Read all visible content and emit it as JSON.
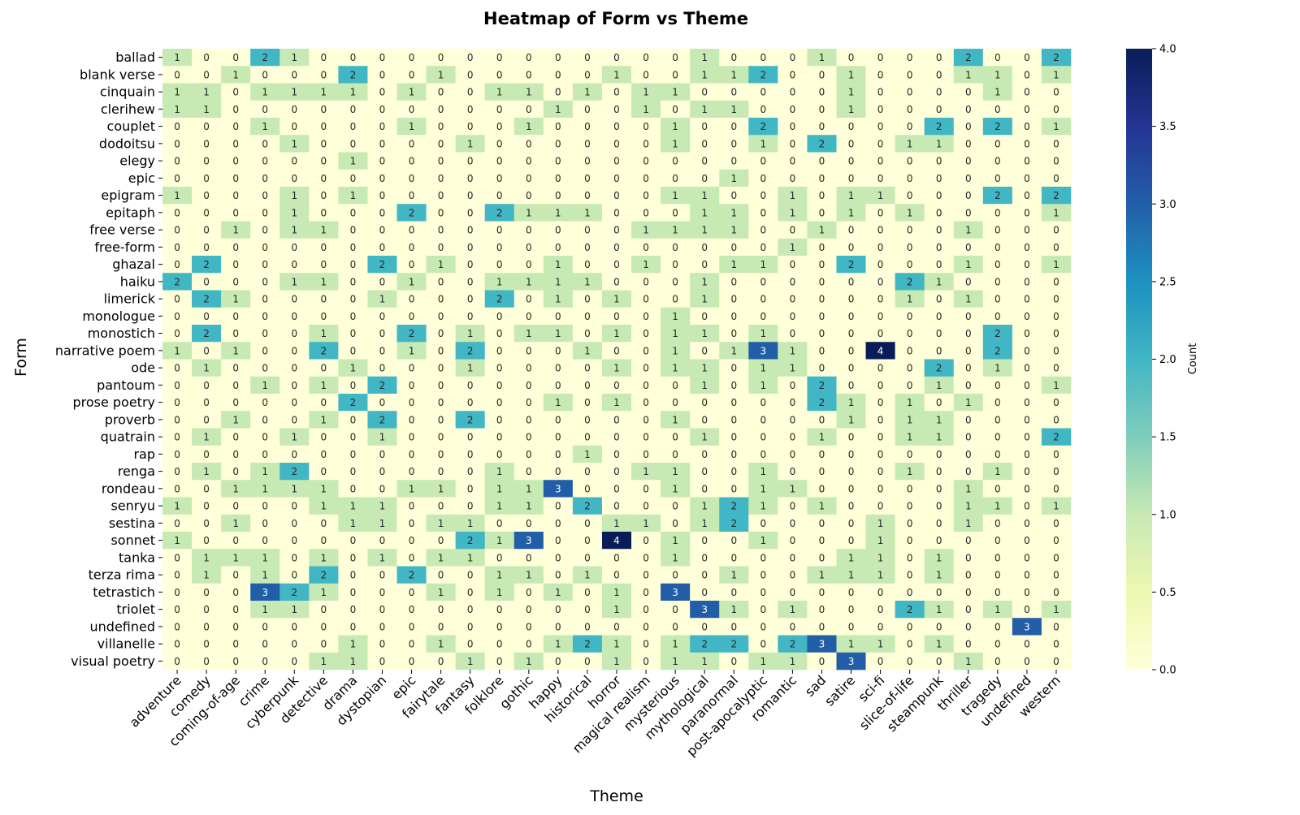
{
  "chart_data": {
    "type": "heatmap",
    "title": "Heatmap of Form vs Theme",
    "xlabel": "Theme",
    "ylabel": "Form",
    "colorbar_label": "Count",
    "colorbar_ticks": [
      "0.0",
      "0.5",
      "1.0",
      "1.5",
      "2.0",
      "2.5",
      "3.0",
      "3.5",
      "4.0"
    ],
    "value_range": [
      0,
      4
    ],
    "colormap": "YlGnBu",
    "colormap_stops": [
      "#ffffd9",
      "#edf8b1",
      "#c7e9b4",
      "#7fcdbb",
      "#41b6c4",
      "#1d91c0",
      "#225ea8",
      "#253494",
      "#081d58"
    ],
    "x_categories": [
      "adventure",
      "comedy",
      "coming-of-age",
      "crime",
      "cyberpunk",
      "detective",
      "drama",
      "dystopian",
      "epic",
      "fairytale",
      "fantasy",
      "folklore",
      "gothic",
      "happy",
      "historical",
      "horror",
      "magical realism",
      "mysterious",
      "mythological",
      "paranormal",
      "post-apocalyptic",
      "romantic",
      "sad",
      "satire",
      "sci-fi",
      "slice-of-life",
      "steampunk",
      "thriller",
      "tragedy",
      "undefined",
      "western"
    ],
    "y_categories": [
      "ballad",
      "blank verse",
      "cinquain",
      "clerihew",
      "couplet",
      "dodoitsu",
      "elegy",
      "epic",
      "epigram",
      "epitaph",
      "free verse",
      "free-form",
      "ghazal",
      "haiku",
      "limerick",
      "monologue",
      "monostich",
      "narrative poem",
      "ode",
      "pantoum",
      "prose poetry",
      "proverb",
      "quatrain",
      "rap",
      "renga",
      "rondeau",
      "senryu",
      "sestina",
      "sonnet",
      "tanka",
      "terza rima",
      "tetrastich",
      "triolet",
      "undefined",
      "villanelle",
      "visual poetry"
    ],
    "values": [
      [
        1,
        0,
        0,
        2,
        1,
        0,
        0,
        0,
        0,
        0,
        0,
        0,
        0,
        0,
        0,
        0,
        0,
        0,
        1,
        0,
        0,
        0,
        1,
        0,
        0,
        0,
        0,
        2,
        0,
        0,
        2
      ],
      [
        0,
        0,
        1,
        0,
        0,
        0,
        2,
        0,
        0,
        1,
        0,
        0,
        0,
        0,
        0,
        1,
        0,
        0,
        1,
        1,
        2,
        0,
        0,
        1,
        0,
        0,
        0,
        1,
        1,
        0,
        1
      ],
      [
        1,
        1,
        0,
        1,
        1,
        1,
        1,
        0,
        1,
        0,
        0,
        1,
        1,
        0,
        1,
        0,
        1,
        1,
        0,
        0,
        0,
        0,
        0,
        1,
        0,
        0,
        0,
        0,
        1,
        0,
        0
      ],
      [
        1,
        1,
        0,
        0,
        0,
        0,
        0,
        0,
        0,
        0,
        0,
        0,
        0,
        1,
        0,
        0,
        1,
        0,
        1,
        1,
        0,
        0,
        0,
        1,
        0,
        0,
        0,
        0,
        0,
        0,
        0
      ],
      [
        0,
        0,
        0,
        1,
        0,
        0,
        0,
        0,
        1,
        0,
        0,
        0,
        1,
        0,
        0,
        0,
        0,
        1,
        0,
        0,
        2,
        0,
        0,
        0,
        0,
        0,
        2,
        0,
        2,
        0,
        1
      ],
      [
        0,
        0,
        0,
        0,
        1,
        0,
        0,
        0,
        0,
        0,
        1,
        0,
        0,
        0,
        0,
        0,
        0,
        1,
        0,
        0,
        1,
        0,
        2,
        0,
        0,
        1,
        1,
        0,
        0,
        0,
        0
      ],
      [
        0,
        0,
        0,
        0,
        0,
        0,
        1,
        0,
        0,
        0,
        0,
        0,
        0,
        0,
        0,
        0,
        0,
        0,
        0,
        0,
        0,
        0,
        0,
        0,
        0,
        0,
        0,
        0,
        0,
        0,
        0
      ],
      [
        0,
        0,
        0,
        0,
        0,
        0,
        0,
        0,
        0,
        0,
        0,
        0,
        0,
        0,
        0,
        0,
        0,
        0,
        0,
        1,
        0,
        0,
        0,
        0,
        0,
        0,
        0,
        0,
        0,
        0,
        0
      ],
      [
        1,
        0,
        0,
        0,
        1,
        0,
        1,
        0,
        0,
        0,
        0,
        0,
        0,
        0,
        0,
        0,
        0,
        1,
        1,
        0,
        0,
        1,
        0,
        1,
        1,
        0,
        0,
        0,
        2,
        0,
        2
      ],
      [
        0,
        0,
        0,
        0,
        1,
        0,
        0,
        0,
        2,
        0,
        0,
        2,
        1,
        1,
        1,
        0,
        0,
        0,
        1,
        1,
        0,
        1,
        0,
        1,
        0,
        1,
        0,
        0,
        0,
        0,
        1
      ],
      [
        0,
        0,
        1,
        0,
        1,
        1,
        0,
        0,
        0,
        0,
        0,
        0,
        0,
        0,
        0,
        0,
        1,
        1,
        1,
        1,
        0,
        0,
        1,
        0,
        0,
        0,
        0,
        1,
        0,
        0,
        0
      ],
      [
        0,
        0,
        0,
        0,
        0,
        0,
        0,
        0,
        0,
        0,
        0,
        0,
        0,
        0,
        0,
        0,
        0,
        0,
        0,
        0,
        0,
        1,
        0,
        0,
        0,
        0,
        0,
        0,
        0,
        0,
        0
      ],
      [
        0,
        2,
        0,
        0,
        0,
        0,
        0,
        2,
        0,
        1,
        0,
        0,
        0,
        1,
        0,
        0,
        1,
        0,
        0,
        1,
        1,
        0,
        0,
        2,
        0,
        0,
        0,
        1,
        0,
        0,
        1
      ],
      [
        2,
        0,
        0,
        0,
        1,
        1,
        0,
        0,
        1,
        0,
        0,
        1,
        1,
        1,
        1,
        0,
        0,
        0,
        1,
        0,
        0,
        0,
        0,
        0,
        0,
        2,
        1,
        0,
        0,
        0,
        0
      ],
      [
        0,
        2,
        1,
        0,
        0,
        0,
        0,
        1,
        0,
        0,
        0,
        2,
        0,
        1,
        0,
        1,
        0,
        0,
        1,
        0,
        0,
        0,
        0,
        0,
        0,
        1,
        0,
        1,
        0,
        0,
        0
      ],
      [
        0,
        0,
        0,
        0,
        0,
        0,
        0,
        0,
        0,
        0,
        0,
        0,
        0,
        0,
        0,
        0,
        0,
        1,
        0,
        0,
        0,
        0,
        0,
        0,
        0,
        0,
        0,
        0,
        0,
        0,
        0
      ],
      [
        0,
        2,
        0,
        0,
        0,
        1,
        0,
        0,
        2,
        0,
        1,
        0,
        1,
        1,
        0,
        1,
        0,
        1,
        1,
        0,
        1,
        0,
        0,
        0,
        0,
        0,
        0,
        0,
        2,
        0,
        0
      ],
      [
        1,
        0,
        1,
        0,
        0,
        2,
        0,
        0,
        1,
        0,
        2,
        0,
        0,
        0,
        1,
        0,
        0,
        1,
        0,
        1,
        3,
        1,
        0,
        0,
        4,
        0,
        0,
        0,
        2,
        0,
        0
      ],
      [
        0,
        1,
        0,
        0,
        0,
        0,
        1,
        0,
        0,
        0,
        1,
        0,
        0,
        0,
        0,
        1,
        0,
        1,
        1,
        0,
        1,
        1,
        0,
        0,
        0,
        0,
        2,
        0,
        1,
        0,
        0
      ],
      [
        0,
        0,
        0,
        1,
        0,
        1,
        0,
        2,
        0,
        0,
        0,
        0,
        0,
        0,
        0,
        0,
        0,
        0,
        1,
        0,
        1,
        0,
        2,
        0,
        0,
        0,
        1,
        0,
        0,
        0,
        1
      ],
      [
        0,
        0,
        0,
        0,
        0,
        0,
        2,
        0,
        0,
        0,
        0,
        0,
        0,
        1,
        0,
        1,
        0,
        0,
        0,
        0,
        0,
        0,
        2,
        1,
        0,
        1,
        0,
        1,
        0,
        0,
        0
      ],
      [
        0,
        0,
        1,
        0,
        0,
        1,
        0,
        2,
        0,
        0,
        2,
        0,
        0,
        0,
        0,
        0,
        0,
        1,
        0,
        0,
        0,
        0,
        0,
        1,
        0,
        1,
        1,
        0,
        0,
        0,
        0
      ],
      [
        0,
        1,
        0,
        0,
        1,
        0,
        0,
        1,
        0,
        0,
        0,
        0,
        0,
        0,
        0,
        0,
        0,
        0,
        1,
        0,
        0,
        0,
        1,
        0,
        0,
        1,
        1,
        0,
        0,
        0,
        2
      ],
      [
        0,
        0,
        0,
        0,
        0,
        0,
        0,
        0,
        0,
        0,
        0,
        0,
        0,
        0,
        1,
        0,
        0,
        0,
        0,
        0,
        0,
        0,
        0,
        0,
        0,
        0,
        0,
        0,
        0,
        0,
        0
      ],
      [
        0,
        1,
        0,
        1,
        2,
        0,
        0,
        0,
        0,
        0,
        0,
        1,
        0,
        0,
        0,
        0,
        1,
        1,
        0,
        0,
        1,
        0,
        0,
        0,
        0,
        1,
        0,
        0,
        1,
        0,
        0
      ],
      [
        0,
        0,
        1,
        1,
        1,
        1,
        0,
        0,
        1,
        1,
        0,
        1,
        1,
        3,
        0,
        0,
        0,
        1,
        0,
        0,
        1,
        1,
        0,
        0,
        0,
        0,
        0,
        1,
        0,
        0,
        0
      ],
      [
        1,
        0,
        0,
        0,
        0,
        1,
        1,
        1,
        0,
        0,
        0,
        1,
        1,
        0,
        2,
        0,
        0,
        0,
        1,
        2,
        1,
        0,
        1,
        0,
        0,
        0,
        0,
        1,
        1,
        0,
        1
      ],
      [
        0,
        0,
        1,
        0,
        0,
        0,
        1,
        1,
        0,
        1,
        1,
        0,
        0,
        0,
        0,
        1,
        1,
        0,
        1,
        2,
        0,
        0,
        0,
        0,
        1,
        0,
        0,
        1,
        0,
        0,
        0
      ],
      [
        1,
        0,
        0,
        0,
        0,
        0,
        0,
        0,
        0,
        0,
        2,
        1,
        3,
        0,
        0,
        4,
        0,
        1,
        0,
        0,
        1,
        0,
        0,
        0,
        1,
        0,
        0,
        0,
        0,
        0,
        0
      ],
      [
        0,
        1,
        1,
        1,
        0,
        1,
        0,
        1,
        0,
        1,
        1,
        0,
        0,
        0,
        0,
        0,
        0,
        1,
        0,
        0,
        0,
        0,
        0,
        1,
        1,
        0,
        1,
        0,
        0,
        0,
        0
      ],
      [
        0,
        1,
        0,
        1,
        0,
        2,
        0,
        0,
        2,
        0,
        0,
        1,
        1,
        0,
        1,
        0,
        0,
        0,
        0,
        1,
        0,
        0,
        1,
        1,
        1,
        0,
        1,
        0,
        0,
        0,
        0
      ],
      [
        0,
        0,
        0,
        3,
        2,
        1,
        0,
        0,
        0,
        1,
        0,
        1,
        0,
        1,
        0,
        1,
        0,
        3,
        0,
        0,
        0,
        0,
        0,
        0,
        0,
        0,
        0,
        0,
        0,
        0,
        0
      ],
      [
        0,
        0,
        0,
        1,
        1,
        0,
        0,
        0,
        0,
        0,
        0,
        0,
        0,
        0,
        0,
        1,
        0,
        0,
        3,
        1,
        0,
        1,
        0,
        0,
        0,
        2,
        1,
        0,
        1,
        0,
        1
      ],
      [
        0,
        0,
        0,
        0,
        0,
        0,
        0,
        0,
        0,
        0,
        0,
        0,
        0,
        0,
        0,
        0,
        0,
        0,
        0,
        0,
        0,
        0,
        0,
        0,
        0,
        0,
        0,
        0,
        0,
        3,
        0
      ],
      [
        0,
        0,
        0,
        0,
        0,
        0,
        1,
        0,
        0,
        1,
        0,
        0,
        0,
        1,
        2,
        1,
        0,
        1,
        2,
        2,
        0,
        2,
        3,
        1,
        1,
        0,
        1,
        0,
        0,
        0,
        0
      ],
      [
        0,
        0,
        0,
        0,
        0,
        1,
        1,
        0,
        0,
        0,
        1,
        0,
        1,
        0,
        0,
        1,
        0,
        1,
        1,
        0,
        1,
        1,
        0,
        3,
        0,
        0,
        0,
        1,
        0,
        0,
        0
      ]
    ]
  }
}
